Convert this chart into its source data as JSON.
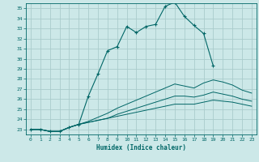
{
  "title": "",
  "xlabel": "Humidex (Indice chaleur)",
  "ylabel": "",
  "bg_color": "#cce8e8",
  "grid_color": "#aacccc",
  "line_color": "#006666",
  "xlim": [
    -0.5,
    23.5
  ],
  "ylim": [
    22.5,
    35.5
  ],
  "xticks": [
    0,
    1,
    2,
    3,
    4,
    5,
    6,
    7,
    8,
    9,
    10,
    11,
    12,
    13,
    14,
    15,
    16,
    17,
    18,
    19,
    20,
    21,
    22,
    23
  ],
  "yticks": [
    23,
    24,
    25,
    26,
    27,
    28,
    29,
    30,
    31,
    32,
    33,
    34,
    35
  ],
  "series": [
    [
      23.0,
      23.0,
      22.8,
      22.8,
      23.2,
      23.5,
      26.3,
      28.5,
      30.8,
      31.2,
      33.2,
      32.6,
      33.2,
      33.4,
      35.2,
      35.6,
      34.2,
      33.3,
      32.5,
      29.3,
      null,
      null,
      null,
      null
    ],
    [
      23.0,
      23.0,
      22.8,
      22.8,
      23.2,
      23.5,
      23.8,
      24.2,
      24.6,
      25.1,
      25.5,
      25.9,
      26.3,
      26.7,
      27.1,
      27.5,
      27.3,
      27.1,
      27.6,
      27.9,
      27.7,
      27.4,
      26.9,
      26.6
    ],
    [
      23.0,
      23.0,
      22.8,
      22.8,
      23.2,
      23.5,
      23.7,
      23.9,
      24.1,
      24.5,
      24.8,
      25.1,
      25.4,
      25.7,
      26.0,
      26.3,
      26.3,
      26.2,
      26.4,
      26.7,
      26.5,
      26.3,
      26.0,
      25.8
    ],
    [
      23.0,
      23.0,
      22.8,
      22.8,
      23.2,
      23.5,
      23.7,
      23.9,
      24.1,
      24.3,
      24.5,
      24.7,
      24.9,
      25.1,
      25.3,
      25.5,
      25.5,
      25.5,
      25.7,
      25.9,
      25.8,
      25.7,
      25.5,
      25.3
    ]
  ]
}
